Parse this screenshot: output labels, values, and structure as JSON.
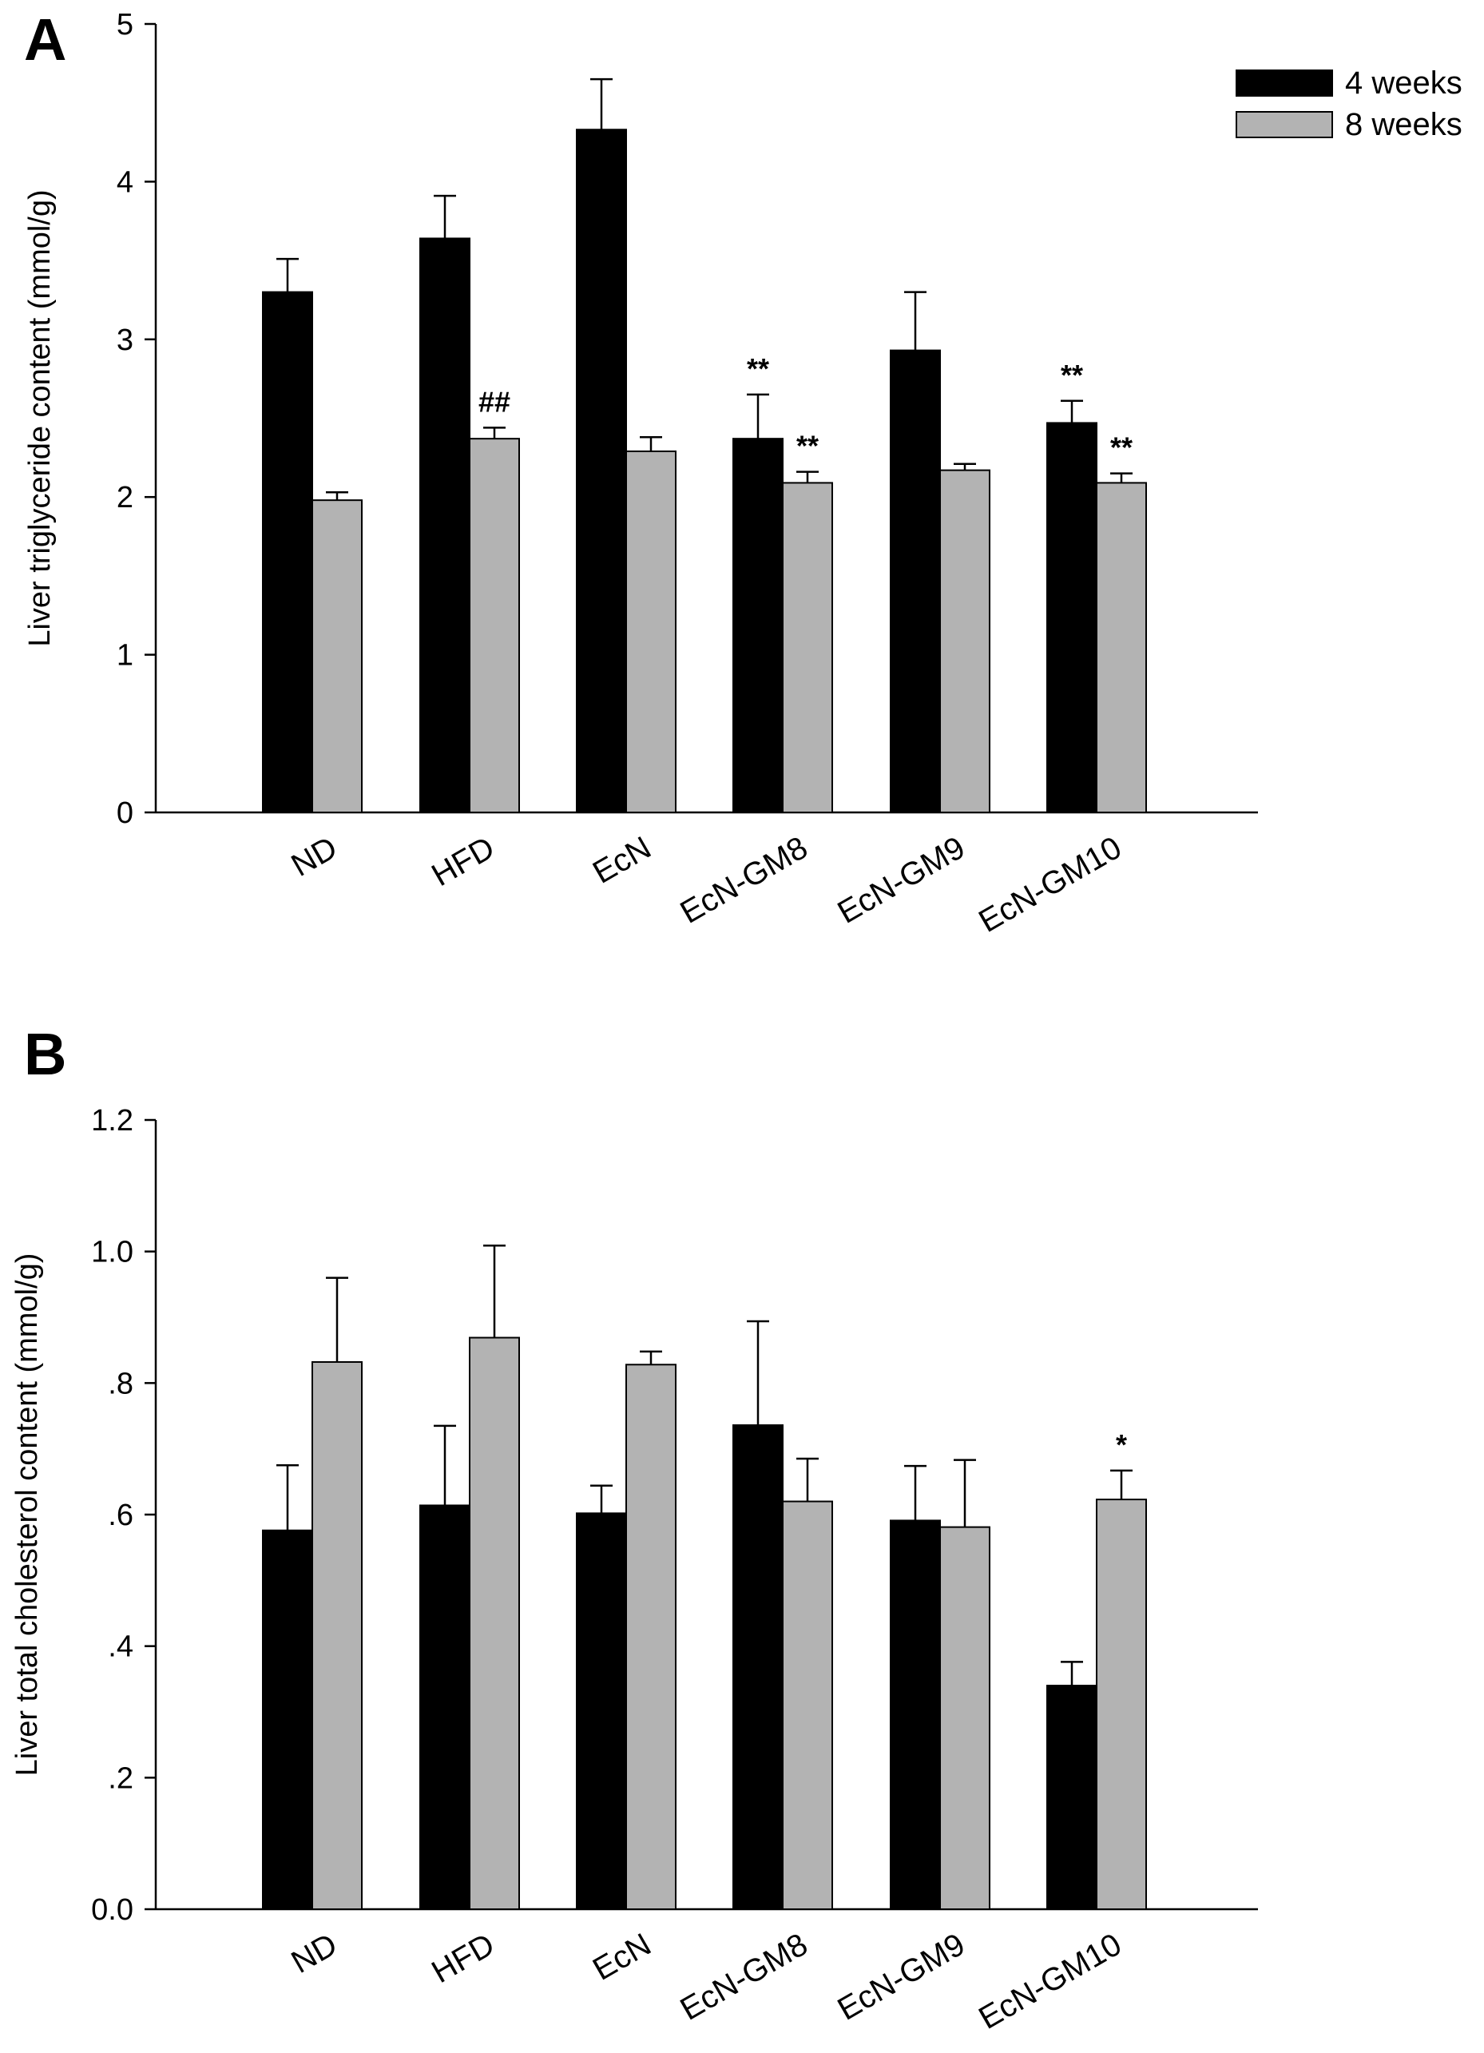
{
  "colors": {
    "week4": "#000000",
    "week8": "#b3b3b3"
  },
  "chart_data": [
    {
      "type": "bar",
      "panel": "A",
      "ylabel": "Liver triglyceride content (mmol/g)",
      "ylim": [
        0,
        5
      ],
      "yticks": [
        0,
        1,
        2,
        3,
        4,
        5
      ],
      "ytick_labels": [
        "0",
        "1",
        "2",
        "3",
        "4",
        "5"
      ],
      "categories": [
        "ND",
        "HFD",
        "EcN",
        "EcN-GM8",
        "EcN-GM9",
        "EcN-GM10"
      ],
      "series": [
        {
          "name": "4 weeks",
          "values": [
            3.3,
            3.64,
            4.33,
            2.37,
            2.93,
            2.47
          ],
          "errors": [
            0.21,
            0.27,
            0.32,
            0.28,
            0.37,
            0.14
          ]
        },
        {
          "name": "8 weeks",
          "values": [
            1.98,
            2.37,
            2.29,
            2.09,
            2.17,
            2.09
          ],
          "errors": [
            0.05,
            0.07,
            0.09,
            0.07,
            0.04,
            0.06
          ]
        }
      ],
      "annotations": [
        {
          "category": "HFD",
          "series": "8 weeks",
          "text": "##"
        },
        {
          "category": "EcN-GM8",
          "series": "4 weeks",
          "text": "**"
        },
        {
          "category": "EcN-GM8",
          "series": "8 weeks",
          "text": "**"
        },
        {
          "category": "EcN-GM10",
          "series": "4 weeks",
          "text": "**"
        },
        {
          "category": "EcN-GM10",
          "series": "8 weeks",
          "text": "**"
        }
      ],
      "legend": {
        "placement": "top-right",
        "entries": [
          "4 weeks",
          "8 weeks"
        ]
      },
      "grid": false
    },
    {
      "type": "bar",
      "panel": "B",
      "ylabel": "Liver total cholesterol content (mmol/g)",
      "ylim": [
        0,
        1.2
      ],
      "yticks": [
        0,
        0.2,
        0.4,
        0.6,
        0.8,
        1.0,
        1.2
      ],
      "ytick_labels": [
        "0.0",
        ".2",
        ".4",
        ".6",
        ".8",
        "1.0",
        "1.2"
      ],
      "categories": [
        "ND",
        "HFD",
        "EcN",
        "EcN-GM8",
        "EcN-GM9",
        "EcN-GM10"
      ],
      "series": [
        {
          "name": "4 weeks",
          "values": [
            0.576,
            0.614,
            0.602,
            0.736,
            0.591,
            0.34
          ],
          "errors": [
            0.099,
            0.121,
            0.042,
            0.158,
            0.083,
            0.036
          ]
        },
        {
          "name": "8 weeks",
          "values": [
            0.832,
            0.869,
            0.828,
            0.62,
            0.581,
            0.623
          ],
          "errors": [
            0.128,
            0.14,
            0.02,
            0.065,
            0.102,
            0.044
          ]
        }
      ],
      "annotations": [
        {
          "category": "EcN-GM10",
          "series": "8 weeks",
          "text": "*"
        }
      ],
      "grid": false
    }
  ]
}
